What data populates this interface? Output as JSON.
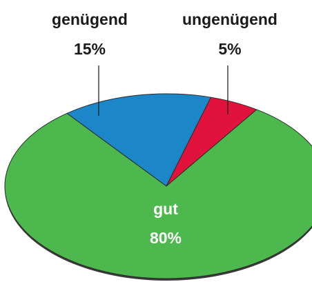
{
  "chart_data": {
    "type": "pie",
    "categories": [
      "genügend",
      "ungenügend",
      "gut"
    ],
    "values": [
      15,
      5,
      80
    ],
    "value_labels": [
      "15%",
      "5%",
      "80%"
    ],
    "colors": [
      "#1b87c9",
      "#e1123c",
      "#4db84d"
    ]
  }
}
